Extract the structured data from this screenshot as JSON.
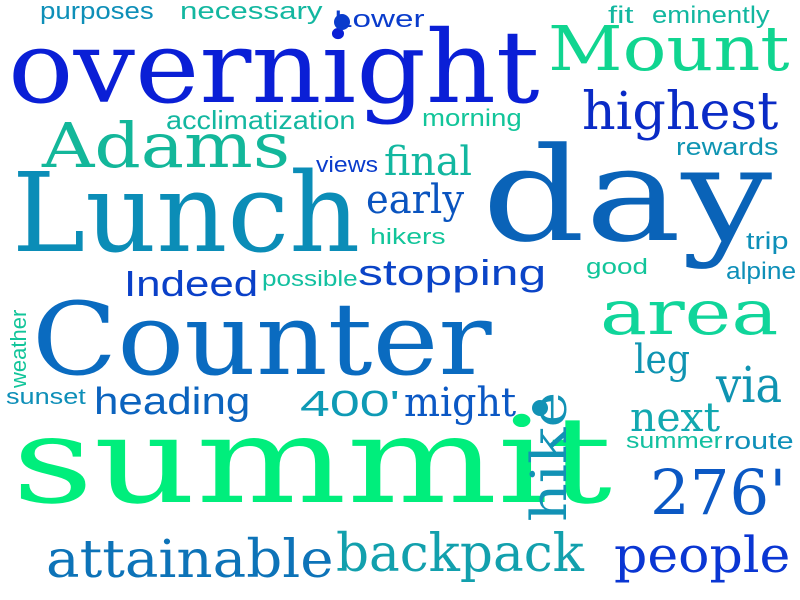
{
  "words": [
    {
      "id": "summit",
      "text": "summit",
      "color": "#00ee7c"
    },
    {
      "id": "day",
      "text": "day",
      "color": "#0a63b8"
    },
    {
      "id": "counter",
      "text": "Counter",
      "color": "#0a6bc0"
    },
    {
      "id": "lunch",
      "text": "Lunch",
      "color": "#0b8db7"
    },
    {
      "id": "overnight",
      "text": "overnight",
      "color": "#0a1fd6"
    },
    {
      "id": "mount",
      "text": "Mount",
      "color": "#10d590"
    },
    {
      "id": "adams",
      "text": "Adams",
      "color": "#13b79a"
    },
    {
      "id": "highest",
      "text": "highest",
      "color": "#0a2bc6"
    },
    {
      "id": "area",
      "text": "area",
      "color": "#10d59a"
    },
    {
      "id": "hike",
      "text": "hike",
      "color": "#1292b5"
    },
    {
      "id": "276",
      "text": "276'",
      "color": "#0b58c4"
    },
    {
      "id": "backpack",
      "text": "backpack",
      "color": "#12a0ad"
    },
    {
      "id": "attainable",
      "text": "attainable",
      "color": "#0d73b8"
    },
    {
      "id": "people",
      "text": "people",
      "color": "#0a36d3"
    },
    {
      "id": "via",
      "text": "via",
      "color": "#0f94b2"
    },
    {
      "id": "stopping",
      "text": "stopping",
      "color": "#0b44c7"
    },
    {
      "id": "next",
      "text": "next",
      "color": "#12a8b0"
    },
    {
      "id": "early",
      "text": "early",
      "color": "#0a54bf"
    },
    {
      "id": "final",
      "text": "final",
      "color": "#12b7a0"
    },
    {
      "id": "indeed",
      "text": "Indeed",
      "color": "#0a40c8"
    },
    {
      "id": "heading",
      "text": "heading",
      "color": "#0b63be"
    },
    {
      "id": "might",
      "text": "might",
      "color": "#0b58c4"
    },
    {
      "id": "400",
      "text": "400'",
      "color": "#0e9ab5"
    },
    {
      "id": "leg",
      "text": "leg",
      "color": "#0f94b2"
    },
    {
      "id": "acclimatization",
      "text": "acclimatization",
      "color": "#13b7a0"
    },
    {
      "id": "necessary",
      "text": "necessary",
      "color": "#13b7a0"
    },
    {
      "id": "purposes",
      "text": "purposes",
      "color": "#0e8fb8"
    },
    {
      "id": "lower",
      "text": "Lower",
      "color": "#0a3ccc"
    },
    {
      "id": "fit",
      "text": "fit",
      "color": "#12b7a0"
    },
    {
      "id": "eminently",
      "text": "eminently",
      "color": "#12b7a0"
    },
    {
      "id": "morning",
      "text": "morning",
      "color": "#12c59a"
    },
    {
      "id": "rewards",
      "text": "rewards",
      "color": "#0f94b2"
    },
    {
      "id": "views",
      "text": "views",
      "color": "#0a3ccc"
    },
    {
      "id": "hikers",
      "text": "hikers",
      "color": "#12c59a"
    },
    {
      "id": "possible",
      "text": "possible",
      "color": "#13c0a0"
    },
    {
      "id": "trip",
      "text": "trip",
      "color": "#0e8fb8"
    },
    {
      "id": "good",
      "text": "good",
      "color": "#12c59a"
    },
    {
      "id": "alpine",
      "text": "alpine",
      "color": "#0e8fb8"
    },
    {
      "id": "weather",
      "text": "weather",
      "color": "#12c59a"
    },
    {
      "id": "sunset",
      "text": "sunset",
      "color": "#0e8fb8"
    },
    {
      "id": "summer",
      "text": "summer",
      "color": "#13c0a0"
    },
    {
      "id": "route",
      "text": "route",
      "color": "#0e8fb8"
    }
  ]
}
